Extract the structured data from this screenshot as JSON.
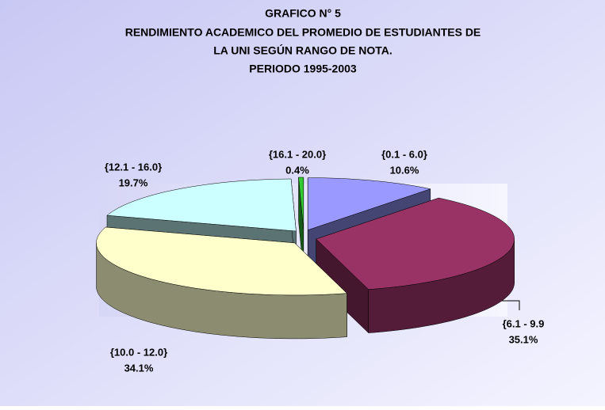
{
  "chart_data": {
    "type": "pie3d",
    "title": [
      "GRAFICO N° 5",
      "RENDIMIENTO ACADEMICO DEL PROMEDIO DE ESTUDIANTES DE",
      "LA UNI SEGÚN RANGO DE NOTA.",
      "PERIODO 1995-2003"
    ],
    "categories": [
      "{0.1 - 6.0}",
      "{6.1 - 9.9",
      "{10.0 - 12.0}",
      "{12.1 - 16.0}",
      "{16.1 - 20.0}"
    ],
    "values": [
      10.6,
      35.1,
      34.1,
      19.7,
      0.4
    ],
    "value_labels": [
      "10.6%",
      "35.1%",
      "34.1%",
      "19.7%",
      "0.4%"
    ],
    "colors": [
      "#9999ff",
      "#993366",
      "#ffffcc",
      "#ccffff",
      "#33cc33"
    ]
  }
}
